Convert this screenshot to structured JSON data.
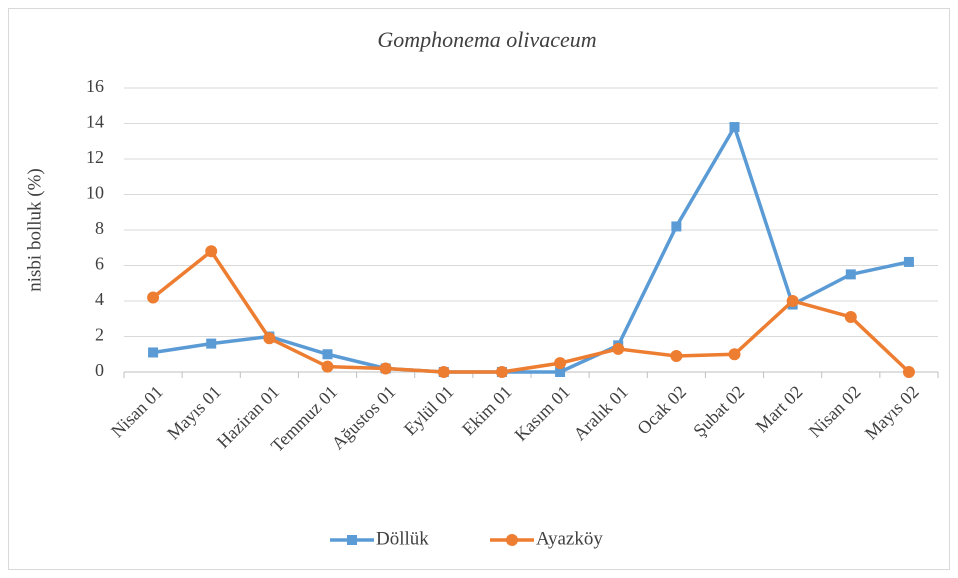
{
  "chart_data": {
    "type": "line",
    "title": "Gomphonema olivaceum",
    "y_label": "nisbi bolluk (%)",
    "categories": [
      "Nisan 01",
      "Mayıs 01",
      "Haziran 01",
      "Temmuz 01",
      "Ağustos 01",
      "Eylül 01",
      "Ekim 01",
      "Kasım 01",
      "Aralık 01",
      "Ocak 02",
      "Şubat 02",
      "Mart 02",
      "Nisan 02",
      "Mayıs 02"
    ],
    "series": [
      {
        "name": "Döllük",
        "color": "#5b9bd5",
        "marker": "square",
        "values": [
          1.1,
          1.6,
          2.0,
          1.0,
          0.2,
          0,
          0,
          0,
          1.5,
          8.2,
          13.8,
          3.8,
          5.5,
          6.2
        ]
      },
      {
        "name": "Ayazköy",
        "color": "#ed7d31",
        "marker": "circle",
        "values": [
          4.2,
          6.8,
          1.9,
          0.3,
          0.2,
          0,
          0,
          0.5,
          1.3,
          0.9,
          1.0,
          4.0,
          3.1,
          0
        ]
      }
    ],
    "ylim": [
      0,
      16
    ],
    "yticks": [
      0,
      2,
      4,
      6,
      8,
      10,
      12,
      14,
      16
    ],
    "grid": true,
    "legend": "bottom"
  }
}
